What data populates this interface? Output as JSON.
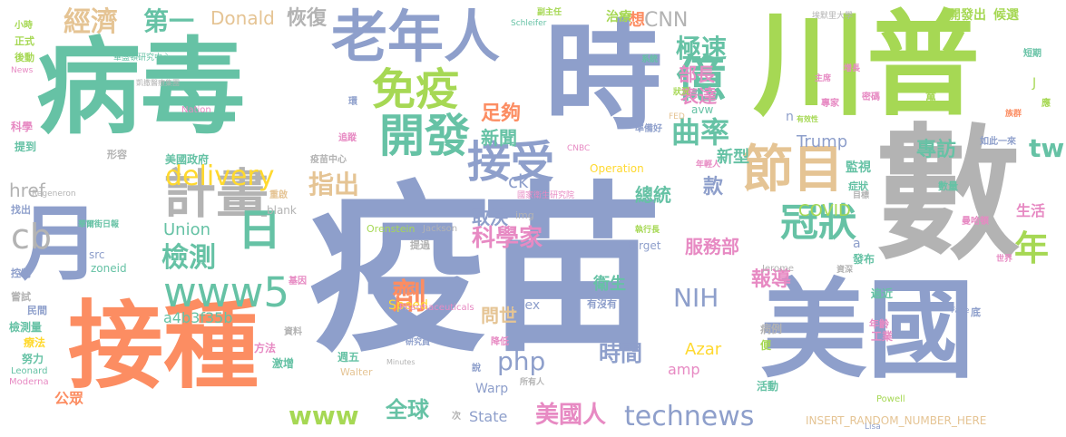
{
  "words": [
    {
      "text": "疫苗",
      "color": "#8e9fcb"
    },
    {
      "text": "病毒",
      "color": "#66c2a5"
    },
    {
      "text": "川普",
      "color": "#a6d854"
    },
    {
      "text": "數",
      "color": "#b3b3b3"
    },
    {
      "text": "美國",
      "color": "#8e9fcb"
    },
    {
      "text": "接種",
      "color": "#fc8d62"
    },
    {
      "text": "時",
      "color": "#8e9fcb"
    },
    {
      "text": "月",
      "color": "#8e9fcb"
    },
    {
      "text": "老年人",
      "color": "#8e9fcb"
    },
    {
      "text": "免疫",
      "color": "#a6d854"
    },
    {
      "text": "億",
      "color": "#66c2a5"
    },
    {
      "text": "計畫",
      "color": "#b3b3b3"
    },
    {
      "text": "開發",
      "color": "#66c2a5"
    },
    {
      "text": "接受",
      "color": "#8e9fcb"
    },
    {
      "text": "節目",
      "color": "#e5c494"
    },
    {
      "text": "冠狀",
      "color": "#66c2a5"
    },
    {
      "text": "www5",
      "color": "#66c2a5"
    },
    {
      "text": "日",
      "color": "#66c2a5"
    },
    {
      "text": "年",
      "color": "#a6d854"
    },
    {
      "text": "cb",
      "color": "#b3b3b3"
    },
    {
      "text": "delivery",
      "color": "#ffd92f"
    },
    {
      "text": "曲率",
      "color": "#66c2a5"
    },
    {
      "text": "極速",
      "color": "#66c2a5"
    },
    {
      "text": "經濟",
      "color": "#e5c494"
    },
    {
      "text": "第一",
      "color": "#66c2a5"
    },
    {
      "text": "Donald",
      "color": "#e5c494"
    },
    {
      "text": "恢復",
      "color": "#b3b3b3"
    },
    {
      "text": "足夠",
      "color": "#fc8d62"
    },
    {
      "text": "新聞",
      "color": "#66c2a5"
    },
    {
      "text": "CNN",
      "color": "#b3b3b3"
    },
    {
      "text": "部長",
      "color": "#e78ac3"
    },
    {
      "text": "表達",
      "color": "#e78ac3"
    },
    {
      "text": "指出",
      "color": "#e5c494"
    },
    {
      "text": "檢測",
      "color": "#66c2a5"
    },
    {
      "text": "科學家",
      "color": "#e78ac3"
    },
    {
      "text": "tw",
      "color": "#66c2a5"
    },
    {
      "text": "專訪",
      "color": "#66c2a5"
    },
    {
      "text": "NIH",
      "color": "#8e9fcb"
    },
    {
      "text": "劑",
      "color": "#fc8d62"
    },
    {
      "text": "php",
      "color": "#8e9fcb"
    },
    {
      "text": "時間",
      "color": "#8e9fcb"
    },
    {
      "text": "technews",
      "color": "#8e9fcb"
    },
    {
      "text": "www",
      "color": "#a6d854"
    },
    {
      "text": "全球",
      "color": "#66c2a5"
    },
    {
      "text": "美國人",
      "color": "#e78ac3"
    },
    {
      "text": "Union",
      "color": "#66c2a5"
    },
    {
      "text": "a4b3f35b",
      "color": "#66c2a5"
    },
    {
      "text": "href",
      "color": "#b3b3b3"
    },
    {
      "text": "ck",
      "color": "#8e9fcb"
    },
    {
      "text": "取決",
      "color": "#8e9fcb"
    },
    {
      "text": "新型",
      "color": "#66c2a5"
    },
    {
      "text": "款",
      "color": "#8e9fcb"
    },
    {
      "text": "總統",
      "color": "#66c2a5"
    },
    {
      "text": "服務部",
      "color": "#e78ac3"
    },
    {
      "text": "COVID",
      "color": "#a6d854"
    },
    {
      "text": "Trump",
      "color": "#8e9fcb"
    },
    {
      "text": "報導",
      "color": "#e78ac3"
    },
    {
      "text": "Azar",
      "color": "#ffd92f"
    },
    {
      "text": "amp",
      "color": "#e78ac3"
    },
    {
      "text": "問世",
      "color": "#e5c494"
    },
    {
      "text": "Alex",
      "color": "#8e9fcb"
    },
    {
      "text": "State",
      "color": "#8e9fcb"
    },
    {
      "text": "衛生",
      "color": "#66c2a5"
    },
    {
      "text": "生活",
      "color": "#e78ac3"
    },
    {
      "text": "監視",
      "color": "#66c2a5"
    },
    {
      "text": "美國政府",
      "color": "#66c2a5"
    },
    {
      "text": "公眾",
      "color": "#fc8d62"
    },
    {
      "text": "想",
      "color": "#fc8d62"
    },
    {
      "text": "治療",
      "color": "#a6d854"
    },
    {
      "text": "開發出",
      "color": "#a6d854"
    },
    {
      "text": "候選",
      "color": "#a6d854"
    },
    {
      "text": "INSERT_RANDOM_NUMBER_HERE",
      "color": "#e5c494"
    },
    {
      "text": "Operation",
      "color": "#ffd92f"
    },
    {
      "text": "Warp",
      "color": "#8e9fcb"
    },
    {
      "text": "Speed",
      "color": "#ffd92f"
    },
    {
      "text": "src",
      "color": "#8e9fcb"
    },
    {
      "text": "zoneid",
      "color": "#66c2a5"
    },
    {
      "text": "target",
      "color": "#8e9fcb"
    },
    {
      "text": "Orenstein",
      "color": "#a6d854"
    },
    {
      "text": "Jackson",
      "color": "#b3b3b3"
    },
    {
      "text": "Jerome",
      "color": "#b3b3b3"
    },
    {
      "text": "Powell",
      "color": "#a6d854"
    },
    {
      "text": "Regeneron",
      "color": "#b3b3b3"
    },
    {
      "text": "Pharmaceuticals",
      "color": "#e78ac3"
    },
    {
      "text": "Moderna",
      "color": "#e78ac3"
    },
    {
      "text": "Leonard",
      "color": "#66c2a5"
    },
    {
      "text": "Walter",
      "color": "#e5c494"
    },
    {
      "text": "Nation",
      "color": "#e78ac3"
    },
    {
      "text": "CNBC",
      "color": "#e78ac3"
    },
    {
      "text": "News",
      "color": "#e78ac3"
    },
    {
      "text": "_blank",
      "color": "#b3b3b3"
    },
    {
      "text": "img",
      "color": "#b3b3b3"
    },
    {
      "text": "Lisa",
      "color": "#8e9fcb"
    },
    {
      "text": "Face",
      "color": "#8e9fcb"
    },
    {
      "text": "FED",
      "color": "#e5c494"
    },
    {
      "text": "avw",
      "color": "#66c2a5"
    },
    {
      "text": "Minutes",
      "color": "#b3b3b3"
    },
    {
      "text": "Schleifer",
      "color": "#66c2a5"
    },
    {
      "text": "檢測量",
      "color": "#66c2a5"
    },
    {
      "text": "療法",
      "color": "#ffd92f"
    },
    {
      "text": "努力",
      "color": "#66c2a5"
    },
    {
      "text": "方法",
      "color": "#e78ac3"
    },
    {
      "text": "激增",
      "color": "#66c2a5"
    },
    {
      "text": "週五",
      "color": "#66c2a5"
    },
    {
      "text": "病例",
      "color": "#b3b3b3"
    },
    {
      "text": "便",
      "color": "#a6d854"
    },
    {
      "text": "活動",
      "color": "#66c2a5"
    },
    {
      "text": "遍近",
      "color": "#66c2a5"
    },
    {
      "text": "發布",
      "color": "#66c2a5"
    },
    {
      "text": "工業",
      "color": "#e78ac3"
    },
    {
      "text": "年齡",
      "color": "#e78ac3"
    },
    {
      "text": "底",
      "color": "#8e9fcb"
    },
    {
      "text": "a",
      "color": "#8e9fcb"
    },
    {
      "text": "n",
      "color": "#8e9fcb"
    },
    {
      "text": "J",
      "color": "#a6d854"
    },
    {
      "text": "萬",
      "color": "#a6d854"
    },
    {
      "text": "應",
      "color": "#a6d854"
    },
    {
      "text": "族群",
      "color": "#fc8d62"
    },
    {
      "text": "症狀",
      "color": "#66c2a5"
    },
    {
      "text": "目標",
      "color": "#b3b3b3"
    },
    {
      "text": "數量",
      "color": "#66c2a5"
    },
    {
      "text": "曼哈頓",
      "color": "#e78ac3"
    },
    {
      "text": "密碼",
      "color": "#e78ac3"
    },
    {
      "text": "專家",
      "color": "#e78ac3"
    },
    {
      "text": "有效性",
      "color": "#a6d854"
    },
    {
      "text": "主席",
      "color": "#e78ac3"
    },
    {
      "text": "增長",
      "color": "#e78ac3"
    },
    {
      "text": "短期",
      "color": "#66c2a5"
    },
    {
      "text": "狀況",
      "color": "#a6d854"
    },
    {
      "text": "系統",
      "color": "#66c2a5"
    },
    {
      "text": "副主任",
      "color": "#a6d854"
    },
    {
      "text": "華盛頓研究中心",
      "color": "#66c2a5"
    },
    {
      "text": "凱撒醫療集團",
      "color": "#b3b3b3"
    },
    {
      "text": "國家衛生研究院",
      "color": "#e78ac3"
    },
    {
      "text": "埃默里大學",
      "color": "#b3b3b3"
    },
    {
      "text": "華爾街日報",
      "color": "#66c2a5"
    },
    {
      "text": "小時",
      "color": "#a6d854"
    },
    {
      "text": "正式",
      "color": "#a6d854"
    },
    {
      "text": "後動",
      "color": "#a6d854"
    },
    {
      "text": "科學",
      "color": "#e78ac3"
    },
    {
      "text": "提到",
      "color": "#66c2a5"
    },
    {
      "text": "形容",
      "color": "#b3b3b3"
    },
    {
      "text": "找出",
      "color": "#8e9fcb"
    },
    {
      "text": "控制",
      "color": "#8e9fcb"
    },
    {
      "text": "嘗試",
      "color": "#b3b3b3"
    },
    {
      "text": "民間",
      "color": "#8e9fcb"
    },
    {
      "text": "基因",
      "color": "#e78ac3"
    },
    {
      "text": "重啟",
      "color": "#e5c494"
    },
    {
      "text": "資料",
      "color": "#b3b3b3"
    },
    {
      "text": "追蹤",
      "color": "#e78ac3"
    },
    {
      "text": "疫苗中心",
      "color": "#b3b3b3"
    },
    {
      "text": "所有人",
      "color": "#b3b3b3"
    },
    {
      "text": "準備好",
      "color": "#8e9fcb"
    },
    {
      "text": "如此一來",
      "color": "#8e9fcb"
    },
    {
      "text": "年輕人",
      "color": "#e78ac3"
    },
    {
      "text": "執行長",
      "color": "#a6d854"
    },
    {
      "text": "資深",
      "color": "#b3b3b3"
    },
    {
      "text": "研究員",
      "color": "#8e9fcb"
    },
    {
      "text": "降低",
      "color": "#e78ac3"
    },
    {
      "text": "有沒有",
      "color": "#8e9fcb"
    },
    {
      "text": "提過",
      "color": "#b3b3b3"
    },
    {
      "text": "世界",
      "color": "#e78ac3"
    },
    {
      "text": "環",
      "color": "#8e9fcb"
    },
    {
      "text": "次",
      "color": "#b3b3b3"
    },
    {
      "text": "說",
      "color": "#8e9fcb"
    }
  ]
}
